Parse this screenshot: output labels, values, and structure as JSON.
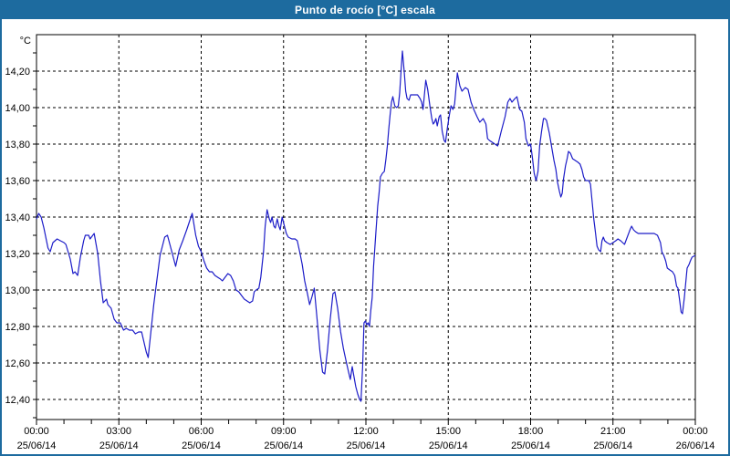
{
  "window": {
    "title": "Punto de rocío [°C] escala"
  },
  "chart_data": {
    "type": "line",
    "title": "Punto de rocío [°C] escala",
    "y_unit_label": "°C",
    "xlim_hours": [
      0,
      24
    ],
    "ylim": [
      12.29,
      14.4
    ],
    "grid": "dashed-black-on",
    "legend": "none",
    "line_color": "#1c1cc8",
    "frame_color": "#000000",
    "chrome_color": "#1d6b9f",
    "background_color": "#ffffff",
    "x_ticks": [
      {
        "hour": 0,
        "time": "00:00",
        "date": "25/06/14"
      },
      {
        "hour": 3,
        "time": "03:00",
        "date": "25/06/14"
      },
      {
        "hour": 6,
        "time": "06:00",
        "date": "25/06/14"
      },
      {
        "hour": 9,
        "time": "09:00",
        "date": "25/06/14"
      },
      {
        "hour": 12,
        "time": "12:00",
        "date": "25/06/14"
      },
      {
        "hour": 15,
        "time": "15:00",
        "date": "25/06/14"
      },
      {
        "hour": 18,
        "time": "18:00",
        "date": "25/06/14"
      },
      {
        "hour": 21,
        "time": "21:00",
        "date": "25/06/14"
      },
      {
        "hour": 24,
        "time": "00:00",
        "date": "26/06/14"
      }
    ],
    "x_minor_tick_hours": 1,
    "y_ticks": [
      {
        "value": 14.2,
        "label": "14,20"
      },
      {
        "value": 14.0,
        "label": "14,00"
      },
      {
        "value": 13.8,
        "label": "13,80"
      },
      {
        "value": 13.6,
        "label": "13,60"
      },
      {
        "value": 13.4,
        "label": "13,40"
      },
      {
        "value": 13.2,
        "label": "13,20"
      },
      {
        "value": 13.0,
        "label": "13,00"
      },
      {
        "value": 12.8,
        "label": "12,80"
      },
      {
        "value": 12.6,
        "label": "12,60"
      },
      {
        "value": 12.4,
        "label": "12,40"
      }
    ],
    "y_minor_tick_step": 0.1,
    "series": [
      {
        "name": "Punto de rocío",
        "points": [
          [
            0,
            13.39
          ],
          [
            0.08,
            13.42
          ],
          [
            0.17,
            13.4
          ],
          [
            0.27,
            13.34
          ],
          [
            0.42,
            13.23
          ],
          [
            0.5,
            13.21
          ],
          [
            0.6,
            13.26
          ],
          [
            0.75,
            13.28
          ],
          [
            0.87,
            13.27
          ],
          [
            1,
            13.26
          ],
          [
            1.07,
            13.25
          ],
          [
            1.23,
            13.17
          ],
          [
            1.33,
            13.09
          ],
          [
            1.4,
            13.1
          ],
          [
            1.5,
            13.08
          ],
          [
            1.6,
            13.18
          ],
          [
            1.72,
            13.27
          ],
          [
            1.78,
            13.3
          ],
          [
            1.9,
            13.3
          ],
          [
            1.95,
            13.28
          ],
          [
            2.1,
            13.31
          ],
          [
            2.23,
            13.2
          ],
          [
            2.33,
            13.05
          ],
          [
            2.43,
            12.93
          ],
          [
            2.55,
            12.95
          ],
          [
            2.6,
            12.92
          ],
          [
            2.72,
            12.9
          ],
          [
            2.83,
            12.84
          ],
          [
            2.93,
            12.82
          ],
          [
            3.05,
            12.82
          ],
          [
            3.17,
            12.78
          ],
          [
            3.27,
            12.79
          ],
          [
            3.38,
            12.78
          ],
          [
            3.5,
            12.78
          ],
          [
            3.6,
            12.76
          ],
          [
            3.72,
            12.77
          ],
          [
            3.83,
            12.77
          ],
          [
            4,
            12.66
          ],
          [
            4.07,
            12.63
          ],
          [
            4.27,
            12.92
          ],
          [
            4.5,
            13.19
          ],
          [
            4.67,
            13.29
          ],
          [
            4.77,
            13.3
          ],
          [
            4.93,
            13.21
          ],
          [
            5.07,
            13.13
          ],
          [
            5.2,
            13.22
          ],
          [
            5.33,
            13.27
          ],
          [
            5.47,
            13.33
          ],
          [
            5.67,
            13.42
          ],
          [
            5.8,
            13.3
          ],
          [
            5.9,
            13.24
          ],
          [
            6,
            13.21
          ],
          [
            6.1,
            13.16
          ],
          [
            6.2,
            13.12
          ],
          [
            6.3,
            13.1
          ],
          [
            6.4,
            13.1
          ],
          [
            6.5,
            13.08
          ],
          [
            6.6,
            13.07
          ],
          [
            6.7,
            13.06
          ],
          [
            6.77,
            13.05
          ],
          [
            6.87,
            13.07
          ],
          [
            6.97,
            13.09
          ],
          [
            7.07,
            13.08
          ],
          [
            7.17,
            13.05
          ],
          [
            7.27,
            13
          ],
          [
            7.37,
            12.99
          ],
          [
            7.47,
            12.97
          ],
          [
            7.57,
            12.95
          ],
          [
            7.67,
            12.94
          ],
          [
            7.77,
            12.93
          ],
          [
            7.87,
            12.94
          ],
          [
            7.93,
            12.99
          ],
          [
            8,
            13
          ],
          [
            8.1,
            13.01
          ],
          [
            8.17,
            13.07
          ],
          [
            8.27,
            13.21
          ],
          [
            8.33,
            13.35
          ],
          [
            8.4,
            13.44
          ],
          [
            8.48,
            13.39
          ],
          [
            8.53,
            13.37
          ],
          [
            8.58,
            13.4
          ],
          [
            8.65,
            13.35
          ],
          [
            8.7,
            13.34
          ],
          [
            8.77,
            13.39
          ],
          [
            8.83,
            13.35
          ],
          [
            8.88,
            13.33
          ],
          [
            8.95,
            13.4
          ],
          [
            9.03,
            13.35
          ],
          [
            9.1,
            13.31
          ],
          [
            9.17,
            13.29
          ],
          [
            9.3,
            13.28
          ],
          [
            9.42,
            13.28
          ],
          [
            9.5,
            13.27
          ],
          [
            9.6,
            13.2
          ],
          [
            9.68,
            13.14
          ],
          [
            9.77,
            13.05
          ],
          [
            9.87,
            12.98
          ],
          [
            9.95,
            12.92
          ],
          [
            10.03,
            12.96
          ],
          [
            10.12,
            13.01
          ],
          [
            10.22,
            12.84
          ],
          [
            10.32,
            12.67
          ],
          [
            10.42,
            12.55
          ],
          [
            10.5,
            12.54
          ],
          [
            10.6,
            12.67
          ],
          [
            10.7,
            12.84
          ],
          [
            10.8,
            12.98
          ],
          [
            10.87,
            12.99
          ],
          [
            10.97,
            12.9
          ],
          [
            11.08,
            12.77
          ],
          [
            11.18,
            12.68
          ],
          [
            11.28,
            12.61
          ],
          [
            11.37,
            12.55
          ],
          [
            11.43,
            12.51
          ],
          [
            11.5,
            12.58
          ],
          [
            11.57,
            12.52
          ],
          [
            11.63,
            12.47
          ],
          [
            11.7,
            12.43
          ],
          [
            11.77,
            12.4
          ],
          [
            11.82,
            12.39
          ],
          [
            11.88,
            12.58
          ],
          [
            11.93,
            12.82
          ],
          [
            11.98,
            12.83
          ],
          [
            12.03,
            12.81
          ],
          [
            12.08,
            12.82
          ],
          [
            12.13,
            12.8
          ],
          [
            12.18,
            12.89
          ],
          [
            12.23,
            12.96
          ],
          [
            12.28,
            13.13
          ],
          [
            12.33,
            13.24
          ],
          [
            12.38,
            13.35
          ],
          [
            12.43,
            13.46
          ],
          [
            12.48,
            13.53
          ],
          [
            12.53,
            13.62
          ],
          [
            12.6,
            13.64
          ],
          [
            12.67,
            13.65
          ],
          [
            12.73,
            13.72
          ],
          [
            12.78,
            13.79
          ],
          [
            12.83,
            13.88
          ],
          [
            12.88,
            13.96
          ],
          [
            12.93,
            14.03
          ],
          [
            12.98,
            14.06
          ],
          [
            13.05,
            14.01
          ],
          [
            13.12,
            14
          ],
          [
            13.18,
            14.01
          ],
          [
            13.23,
            14.08
          ],
          [
            13.28,
            14.2
          ],
          [
            13.33,
            14.31
          ],
          [
            13.4,
            14.19
          ],
          [
            13.45,
            14.09
          ],
          [
            13.5,
            14.05
          ],
          [
            13.57,
            14.04
          ],
          [
            13.63,
            14.07
          ],
          [
            13.72,
            14.07
          ],
          [
            13.8,
            14.07
          ],
          [
            13.88,
            14.07
          ],
          [
            13.97,
            14.05
          ],
          [
            14.03,
            14.03
          ],
          [
            14.08,
            13.99
          ],
          [
            14.13,
            14.07
          ],
          [
            14.18,
            14.15
          ],
          [
            14.25,
            14.1
          ],
          [
            14.33,
            14.01
          ],
          [
            14.4,
            13.94
          ],
          [
            14.45,
            13.91
          ],
          [
            14.5,
            13.92
          ],
          [
            14.55,
            13.94
          ],
          [
            14.6,
            13.9
          ],
          [
            14.67,
            13.95
          ],
          [
            14.72,
            13.96
          ],
          [
            14.78,
            13.87
          ],
          [
            14.85,
            13.82
          ],
          [
            14.9,
            13.81
          ],
          [
            14.98,
            13.9
          ],
          [
            15.05,
            13.97
          ],
          [
            15.1,
            14.01
          ],
          [
            15.17,
            13.99
          ],
          [
            15.23,
            14.02
          ],
          [
            15.33,
            14.19
          ],
          [
            15.42,
            14.12
          ],
          [
            15.5,
            14.09
          ],
          [
            15.62,
            14.11
          ],
          [
            15.72,
            14.1
          ],
          [
            15.83,
            14.03
          ],
          [
            15.93,
            13.99
          ],
          [
            16.05,
            13.95
          ],
          [
            16.15,
            13.92
          ],
          [
            16.27,
            13.94
          ],
          [
            16.37,
            13.91
          ],
          [
            16.43,
            13.83
          ],
          [
            16.5,
            13.82
          ],
          [
            16.6,
            13.81
          ],
          [
            16.7,
            13.8
          ],
          [
            16.8,
            13.79
          ],
          [
            16.93,
            13.87
          ],
          [
            17.07,
            13.95
          ],
          [
            17.17,
            14.03
          ],
          [
            17.25,
            14.05
          ],
          [
            17.32,
            14.03
          ],
          [
            17.43,
            14.05
          ],
          [
            17.5,
            14.06
          ],
          [
            17.6,
            13.99
          ],
          [
            17.68,
            13.98
          ],
          [
            17.77,
            13.92
          ],
          [
            17.83,
            13.83
          ],
          [
            17.92,
            13.79
          ],
          [
            18,
            13.8
          ],
          [
            18.07,
            13.72
          ],
          [
            18.13,
            13.64
          ],
          [
            18.2,
            13.6
          ],
          [
            18.27,
            13.65
          ],
          [
            18.33,
            13.79
          ],
          [
            18.4,
            13.87
          ],
          [
            18.47,
            13.94
          ],
          [
            18.52,
            13.94
          ],
          [
            18.58,
            13.93
          ],
          [
            18.68,
            13.86
          ],
          [
            18.77,
            13.78
          ],
          [
            18.85,
            13.71
          ],
          [
            18.92,
            13.66
          ],
          [
            18.98,
            13.59
          ],
          [
            19.05,
            13.54
          ],
          [
            19.1,
            13.51
          ],
          [
            19.15,
            13.53
          ],
          [
            19.2,
            13.61
          ],
          [
            19.27,
            13.68
          ],
          [
            19.33,
            13.72
          ],
          [
            19.38,
            13.76
          ],
          [
            19.45,
            13.75
          ],
          [
            19.53,
            13.72
          ],
          [
            19.63,
            13.71
          ],
          [
            19.73,
            13.7
          ],
          [
            19.8,
            13.69
          ],
          [
            19.87,
            13.66
          ],
          [
            19.93,
            13.62
          ],
          [
            20,
            13.6
          ],
          [
            20.12,
            13.6
          ],
          [
            20.18,
            13.58
          ],
          [
            20.25,
            13.47
          ],
          [
            20.3,
            13.39
          ],
          [
            20.35,
            13.33
          ],
          [
            20.42,
            13.24
          ],
          [
            20.48,
            13.22
          ],
          [
            20.55,
            13.21
          ],
          [
            20.6,
            13.27
          ],
          [
            20.65,
            13.29
          ],
          [
            20.7,
            13.27
          ],
          [
            20.78,
            13.26
          ],
          [
            20.9,
            13.25
          ],
          [
            21,
            13.26
          ],
          [
            21.1,
            13.27
          ],
          [
            21.18,
            13.28
          ],
          [
            21.28,
            13.27
          ],
          [
            21.35,
            13.26
          ],
          [
            21.42,
            13.25
          ],
          [
            21.52,
            13.29
          ],
          [
            21.62,
            13.33
          ],
          [
            21.68,
            13.35
          ],
          [
            21.75,
            13.33
          ],
          [
            21.82,
            13.32
          ],
          [
            21.92,
            13.31
          ],
          [
            22.05,
            13.31
          ],
          [
            22.2,
            13.31
          ],
          [
            22.35,
            13.31
          ],
          [
            22.5,
            13.31
          ],
          [
            22.62,
            13.3
          ],
          [
            22.73,
            13.26
          ],
          [
            22.78,
            13.21
          ],
          [
            22.85,
            13.19
          ],
          [
            22.92,
            13.16
          ],
          [
            22.98,
            13.12
          ],
          [
            23.07,
            13.11
          ],
          [
            23.17,
            13.1
          ],
          [
            23.25,
            13.08
          ],
          [
            23.32,
            13.02
          ],
          [
            23.37,
            13.01
          ],
          [
            23.43,
            12.94
          ],
          [
            23.48,
            12.88
          ],
          [
            23.53,
            12.87
          ],
          [
            23.6,
            12.96
          ],
          [
            23.65,
            13.04
          ],
          [
            23.7,
            13.12
          ],
          [
            23.77,
            13.14
          ],
          [
            23.82,
            13.16
          ],
          [
            23.88,
            13.18
          ],
          [
            24,
            13.19
          ]
        ]
      }
    ]
  }
}
